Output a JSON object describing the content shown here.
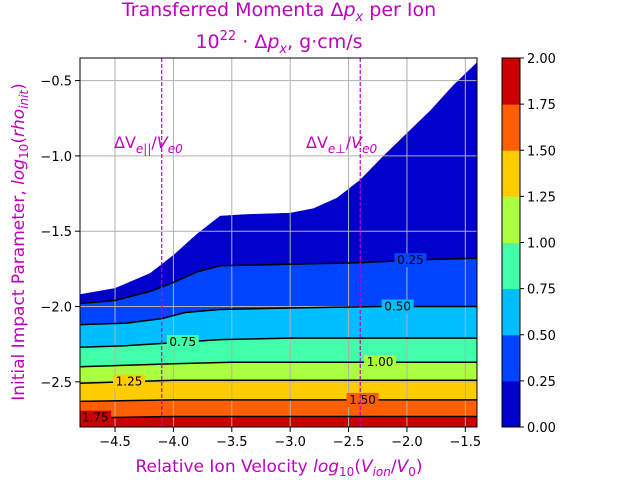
{
  "chart_data": {
    "type": "contour",
    "title_line1": "Transferred Momenta Δp_x per Ion",
    "title_line2": "10^22 · Δp_x, g·cm/s",
    "xlabel": "Relative Ion Velocity log10(V_ion/V0)",
    "ylabel": "Initial Impact Parameter, log10(rho_init)",
    "xlim": [
      -4.8,
      -1.4
    ],
    "ylim": [
      -2.8,
      -0.35
    ],
    "xticks": [
      "-4.5",
      "-4.0",
      "-3.5",
      "-3.0",
      "-2.5",
      "-2.0",
      "-1.5"
    ],
    "xtick_values": [
      -4.5,
      -4.0,
      -3.5,
      -3.0,
      -2.5,
      -2.0,
      -1.5
    ],
    "yticks": [
      "-0.5",
      "-1.0",
      "-1.5",
      "-2.0",
      "-2.5"
    ],
    "ytick_values": [
      -0.5,
      -1.0,
      -1.5,
      -2.0,
      -2.5
    ],
    "grid": true,
    "levels": [
      0.0,
      0.25,
      0.5,
      0.75,
      1.0,
      1.25,
      1.5,
      1.75,
      2.0
    ],
    "level_colors": [
      "#0000cc",
      "#0044ff",
      "#00bfff",
      "#40ffa8",
      "#aaff40",
      "#ffcc00",
      "#ff5f00",
      "#cc0000"
    ],
    "colorbar_ticks": [
      "0.00",
      "0.25",
      "0.50",
      "0.75",
      "1.00",
      "1.25",
      "1.50",
      "1.75",
      "2.00"
    ],
    "upper_boundary": [
      {
        "x": -4.8,
        "y": -1.92
      },
      {
        "x": -4.5,
        "y": -1.88
      },
      {
        "x": -4.2,
        "y": -1.78
      },
      {
        "x": -4.0,
        "y": -1.66
      },
      {
        "x": -3.8,
        "y": -1.52
      },
      {
        "x": -3.6,
        "y": -1.4
      },
      {
        "x": -3.4,
        "y": -1.39
      },
      {
        "x": -3.0,
        "y": -1.38
      },
      {
        "x": -2.8,
        "y": -1.35
      },
      {
        "x": -2.6,
        "y": -1.28
      },
      {
        "x": -2.4,
        "y": -1.16
      },
      {
        "x": -2.2,
        "y": -1.0
      },
      {
        "x": -2.0,
        "y": -0.85
      },
      {
        "x": -1.8,
        "y": -0.7
      },
      {
        "x": -1.6,
        "y": -0.53
      },
      {
        "x": -1.4,
        "y": -0.38
      }
    ],
    "contours": [
      {
        "level": 0.25,
        "label": "0.25",
        "label_x": -1.97,
        "points": [
          {
            "x": -4.8,
            "y": -1.98
          },
          {
            "x": -4.5,
            "y": -1.96
          },
          {
            "x": -4.2,
            "y": -1.9
          },
          {
            "x": -4.0,
            "y": -1.84
          },
          {
            "x": -3.8,
            "y": -1.77
          },
          {
            "x": -3.6,
            "y": -1.73
          },
          {
            "x": -3.0,
            "y": -1.72
          },
          {
            "x": -2.4,
            "y": -1.71
          },
          {
            "x": -1.9,
            "y": -1.69
          },
          {
            "x": -1.4,
            "y": -1.68
          }
        ]
      },
      {
        "level": 0.5,
        "label": "0.50",
        "label_x": -2.08,
        "points": [
          {
            "x": -4.8,
            "y": -2.12
          },
          {
            "x": -4.4,
            "y": -2.11
          },
          {
            "x": -4.1,
            "y": -2.08
          },
          {
            "x": -3.9,
            "y": -2.04
          },
          {
            "x": -3.6,
            "y": -2.02
          },
          {
            "x": -3.0,
            "y": -2.01
          },
          {
            "x": -2.2,
            "y": -2.0
          },
          {
            "x": -1.4,
            "y": -2.0
          }
        ]
      },
      {
        "level": 0.75,
        "label": "0.75",
        "label_x": -3.92,
        "points": [
          {
            "x": -4.8,
            "y": -2.27
          },
          {
            "x": -4.4,
            "y": -2.26
          },
          {
            "x": -4.0,
            "y": -2.24
          },
          {
            "x": -3.6,
            "y": -2.22
          },
          {
            "x": -3.0,
            "y": -2.21
          },
          {
            "x": -2.2,
            "y": -2.21
          },
          {
            "x": -1.4,
            "y": -2.21
          }
        ]
      },
      {
        "level": 1.0,
        "label": "1.00",
        "label_x": -2.23,
        "points": [
          {
            "x": -4.8,
            "y": -2.4
          },
          {
            "x": -4.4,
            "y": -2.39
          },
          {
            "x": -4.0,
            "y": -2.38
          },
          {
            "x": -3.5,
            "y": -2.37
          },
          {
            "x": -3.0,
            "y": -2.37
          },
          {
            "x": -2.2,
            "y": -2.37
          },
          {
            "x": -1.4,
            "y": -2.37
          }
        ]
      },
      {
        "level": 1.25,
        "label": "1.25",
        "label_x": -4.38,
        "points": [
          {
            "x": -4.8,
            "y": -2.51
          },
          {
            "x": -4.4,
            "y": -2.5
          },
          {
            "x": -4.0,
            "y": -2.49
          },
          {
            "x": -3.5,
            "y": -2.49
          },
          {
            "x": -2.8,
            "y": -2.49
          },
          {
            "x": -2.0,
            "y": -2.49
          },
          {
            "x": -1.4,
            "y": -2.49
          }
        ]
      },
      {
        "level": 1.5,
        "label": "1.50",
        "label_x": -2.38,
        "points": [
          {
            "x": -4.8,
            "y": -2.63
          },
          {
            "x": -4.0,
            "y": -2.62
          },
          {
            "x": -3.0,
            "y": -2.62
          },
          {
            "x": -2.0,
            "y": -2.62
          },
          {
            "x": -1.4,
            "y": -2.62
          }
        ]
      },
      {
        "level": 1.75,
        "label": "1.75",
        "label_x": -4.67,
        "points": [
          {
            "x": -4.8,
            "y": -2.74
          },
          {
            "x": -4.0,
            "y": -2.73
          },
          {
            "x": -3.0,
            "y": -2.73
          },
          {
            "x": -2.0,
            "y": -2.73
          },
          {
            "x": -1.4,
            "y": -2.73
          }
        ]
      }
    ],
    "markers": [
      {
        "x": -4.1,
        "label": "ΔV_e||/V_e0",
        "label_x": -4.5
      },
      {
        "x": -2.4,
        "label": "ΔV_e⊥/V_e0",
        "label_x": -2.75
      }
    ],
    "marker_color": "#c000c0"
  }
}
